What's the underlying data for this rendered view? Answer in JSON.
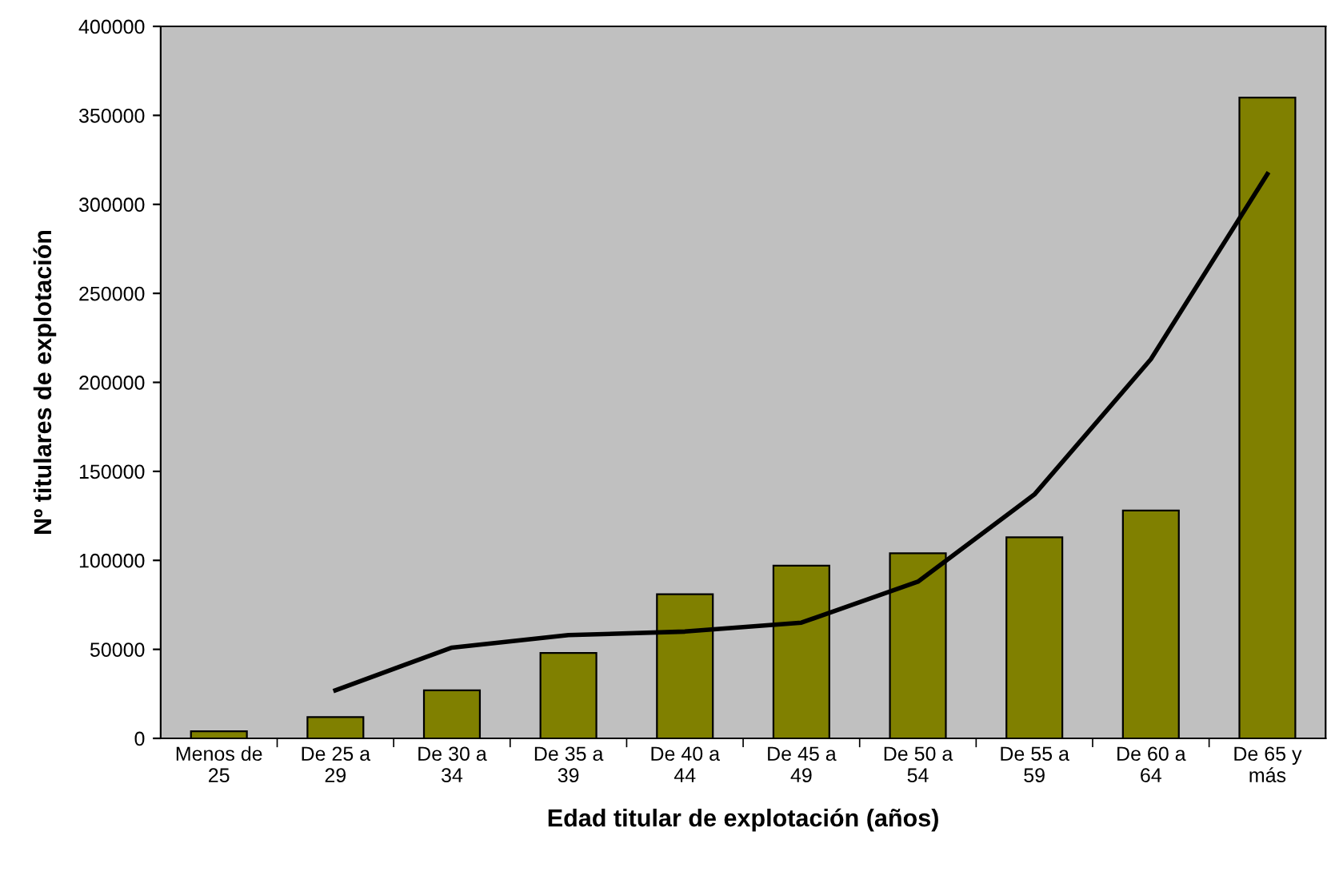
{
  "chart_data": {
    "type": "bar",
    "xlabel": "Edad titular de explotación (años)",
    "ylabel": "Nº titulares de explotación",
    "categories": [
      "Menos de\n25",
      "De 25 a\n29",
      "De 30 a\n34",
      "De 35 a\n39",
      "De 40 a\n44",
      "De 45 a\n49",
      "De 50 a\n54",
      "De 55 a\n59",
      "De 60 a\n64",
      "De 65 y\nmás"
    ],
    "series": [
      {
        "color": "#808000",
        "values": [
          4000,
          12000,
          27000,
          48000,
          81000,
          97000,
          104000,
          113000,
          128000,
          360000
        ]
      },
      {
        "type": "line",
        "color": "#000000",
        "values": [
          null,
          27000,
          51000,
          58000,
          60000,
          65000,
          88000,
          137000,
          213000,
          317000
        ]
      }
    ],
    "ylim": [
      0,
      400000
    ],
    "yticks": [
      0,
      50000,
      100000,
      150000,
      200000,
      250000,
      300000,
      350000,
      400000
    ],
    "grid": false,
    "legend": false
  }
}
